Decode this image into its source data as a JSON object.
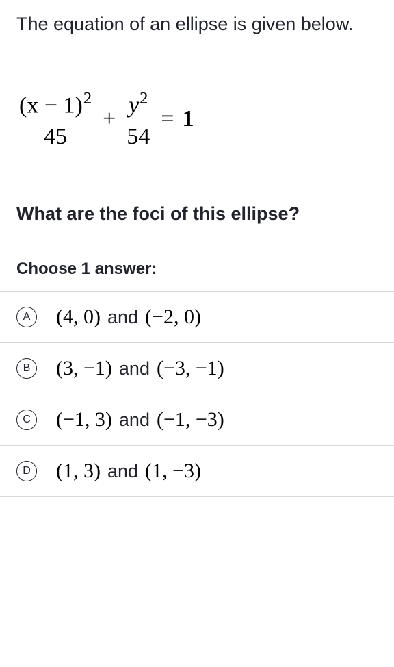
{
  "intro": "The equation of an ellipse is given below.",
  "equation": {
    "frac1_num": "(x − 1)",
    "frac1_num_exp": "2",
    "frac1_den": "45",
    "plus": "+",
    "frac2_num": "y",
    "frac2_num_exp": "2",
    "frac2_den": "54",
    "equals": "=",
    "rhs": "1"
  },
  "question": "What are the foci of this ellipse?",
  "choose": "Choose 1 answer:",
  "options": [
    {
      "letter": "A",
      "p1": "(4, 0)",
      "join": "and",
      "p2": "(−2, 0)"
    },
    {
      "letter": "B",
      "p1": "(3, −1)",
      "join": "and",
      "p2": "(−3, −1)"
    },
    {
      "letter": "C",
      "p1": "(−1, 3)",
      "join": "and",
      "p2": "(−1, −3)"
    },
    {
      "letter": "D",
      "p1": "(1, 3)",
      "join": "and",
      "p2": "(1, −3)"
    }
  ],
  "colors": {
    "text": "#21242c",
    "math": "#000000",
    "border": "#d6d8da",
    "background": "#ffffff"
  }
}
